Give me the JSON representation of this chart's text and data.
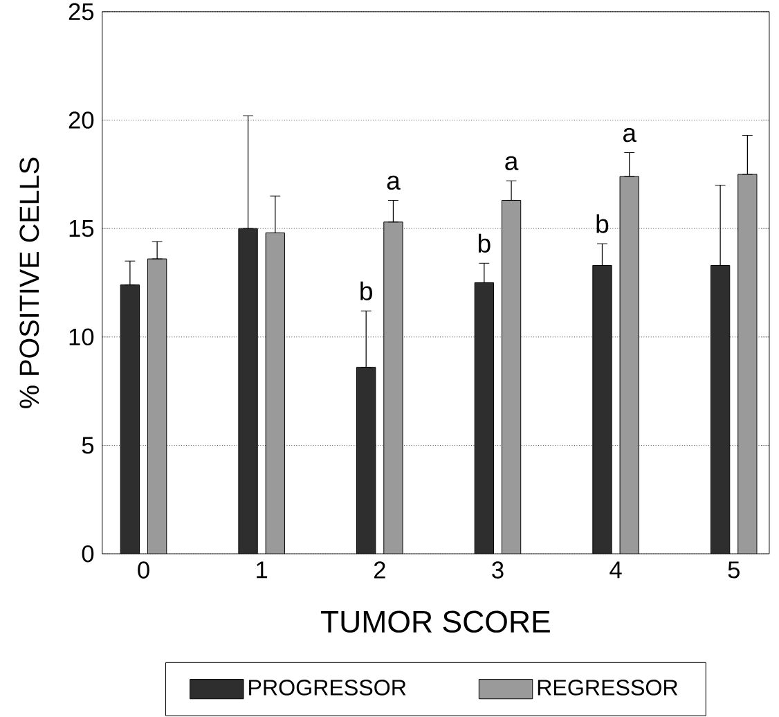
{
  "chart_data": {
    "type": "bar",
    "xlabel": "TUMOR SCORE",
    "ylabel": "% POSITIVE CELLS",
    "categories": [
      "0",
      "1",
      "2",
      "3",
      "4",
      "5"
    ],
    "series": [
      {
        "name": "PROGRESSOR",
        "color": "#2e2e2e",
        "values": [
          12.4,
          15.0,
          8.6,
          12.5,
          13.3,
          13.3
        ],
        "errors": [
          [
            12.4,
            13.5
          ],
          [
            15.0,
            20.2
          ],
          [
            8.6,
            11.2
          ],
          [
            12.5,
            13.4
          ],
          [
            13.3,
            14.3
          ],
          [
            13.3,
            17.0
          ]
        ],
        "value_labels": [
          null,
          null,
          "b",
          "b",
          "b",
          null
        ]
      },
      {
        "name": "REGRESSOR",
        "color": "#9a9a9a",
        "values": [
          13.6,
          14.8,
          15.3,
          16.3,
          17.4,
          17.5
        ],
        "errors": [
          [
            13.6,
            14.4
          ],
          [
            14.8,
            16.5
          ],
          [
            15.3,
            16.3
          ],
          [
            16.3,
            17.2
          ],
          [
            17.4,
            18.5
          ],
          [
            17.5,
            19.3
          ]
        ],
        "value_labels": [
          null,
          null,
          "a",
          "a",
          "a",
          null
        ]
      }
    ],
    "ylim": [
      0,
      25
    ],
    "yticks": [
      0,
      5,
      10,
      15,
      20,
      25
    ],
    "grid": "y",
    "legend": "bottom"
  }
}
